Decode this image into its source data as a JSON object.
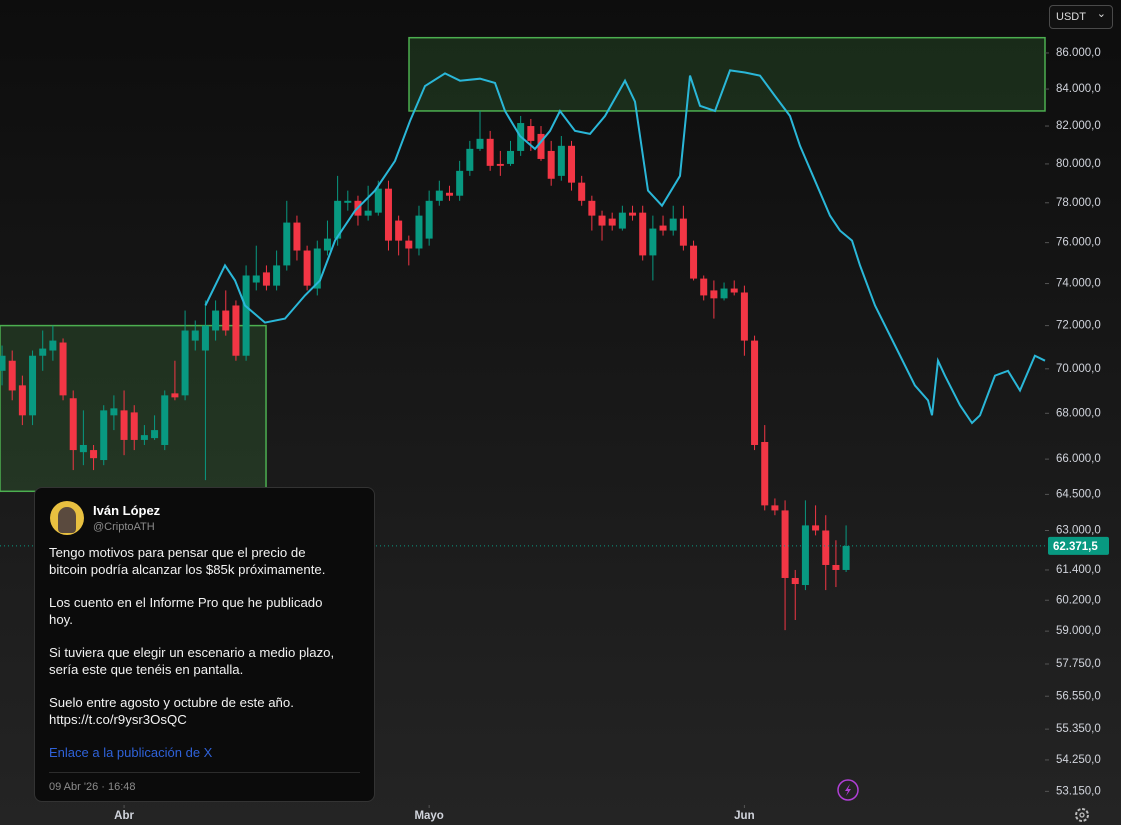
{
  "chart_data": {
    "type": "candlestick",
    "log_scale": true,
    "grid": false,
    "currency": "USDT",
    "ylim": [
      52680,
      89020
    ],
    "yticks": [
      {
        "value": 86000,
        "label": "86.000,0"
      },
      {
        "value": 84000,
        "label": "84.000,0"
      },
      {
        "value": 82000,
        "label": "82.000,0"
      },
      {
        "value": 80000,
        "label": "80.000,0"
      },
      {
        "value": 78000,
        "label": "78.000,0"
      },
      {
        "value": 76000,
        "label": "76.000,0"
      },
      {
        "value": 74000,
        "label": "74.000,0"
      },
      {
        "value": 72000,
        "label": "72.000,0"
      },
      {
        "value": 70000,
        "label": "70.000,0"
      },
      {
        "value": 68000,
        "label": "68.000,0"
      },
      {
        "value": 66000,
        "label": "66.000,0"
      },
      {
        "value": 64500,
        "label": "64.500,0"
      },
      {
        "value": 63000,
        "label": "63.000,0"
      },
      {
        "value": 61400,
        "label": "61.400,0"
      },
      {
        "value": 60200,
        "label": "60.200,0"
      },
      {
        "value": 59000,
        "label": "59.000,0"
      },
      {
        "value": 57750,
        "label": "57.750,0"
      },
      {
        "value": 56550,
        "label": "56.550,0"
      },
      {
        "value": 55350,
        "label": "55.350,0"
      },
      {
        "value": 54250,
        "label": "54.250,0"
      },
      {
        "value": 53150,
        "label": "53.150,0"
      }
    ],
    "xlim": [
      -0.2,
      102.56
    ],
    "xticks": [
      {
        "value": 12,
        "label": "Abr"
      },
      {
        "value": 42,
        "label": "Mayo"
      },
      {
        "value": 73,
        "label": "Jun"
      }
    ],
    "up_color": "#089981",
    "down_color": "#f23645",
    "open": [
      69910,
      70370,
      69250,
      67910,
      70600,
      70840,
      71210,
      68670,
      66300,
      66390,
      65960,
      67910,
      68130,
      68040,
      66830,
      66910,
      66610,
      68890,
      68800,
      71300,
      70840,
      71770,
      72710,
      72950,
      70600,
      74050,
      74540,
      73900,
      74880,
      77000,
      75610,
      73760,
      75610,
      76200,
      78000,
      78100,
      77350,
      77500,
      78720,
      77100,
      76100,
      75710,
      76200,
      78100,
      78510,
      78360,
      79640,
      80790,
      81320,
      80000,
      80000,
      80680,
      82000,
      81580,
      80680,
      79380,
      80950,
      79030,
      78100,
      77350,
      77200,
      76700,
      77500,
      77500,
      75370,
      76850,
      76600,
      77200,
      75850,
      74240,
      73670,
      73290,
      73760,
      73570,
      71300,
      66740,
      64040,
      63830,
      61080,
      60800,
      63210,
      63000,
      61600,
      61400
    ],
    "high": [
      71070,
      70840,
      69690,
      70840,
      71770,
      72000,
      71400,
      69020,
      68130,
      66610,
      68360,
      68800,
      69020,
      68360,
      67480,
      67910,
      69020,
      70370,
      72710,
      72240,
      73190,
      73190,
      73670,
      73190,
      74880,
      75850,
      74880,
      75610,
      78100,
      77350,
      75850,
      76100,
      77100,
      79380,
      78620,
      78360,
      78870,
      79130,
      79130,
      77350,
      76350,
      77850,
      78620,
      79130,
      78870,
      80160,
      81210,
      82810,
      81740,
      80680,
      81210,
      82540,
      82380,
      82000,
      81210,
      81470,
      81210,
      79380,
      78360,
      77600,
      77500,
      77850,
      77850,
      77850,
      77350,
      77350,
      77850,
      77850,
      76100,
      74390,
      74150,
      74050,
      74150,
      73900,
      71530,
      67480,
      64330,
      64250,
      61400,
      64250,
      64040,
      63630,
      62600,
      63210
    ],
    "low": [
      69250,
      68580,
      67480,
      67480,
      69910,
      70370,
      68580,
      65530,
      65740,
      65530,
      65740,
      67260,
      66170,
      66390,
      66610,
      66830,
      66390,
      68580,
      68580,
      70840,
      65100,
      71300,
      71530,
      70370,
      70370,
      73670,
      73670,
      73670,
      74630,
      75120,
      73670,
      73430,
      75370,
      75850,
      77600,
      76850,
      77100,
      77350,
      75610,
      75370,
      74880,
      75370,
      75850,
      77850,
      78100,
      78100,
      79380,
      80680,
      79640,
      79380,
      79900,
      80420,
      80680,
      80160,
      78870,
      79130,
      78620,
      77850,
      76600,
      76100,
      76600,
      76600,
      77100,
      75120,
      74150,
      76350,
      76350,
      75610,
      74150,
      73190,
      72330,
      73190,
      73430,
      70600,
      66390,
      63830,
      63630,
      59040,
      59430,
      60600,
      62800,
      60600,
      60720,
      61320
    ],
    "close": [
      70600,
      69020,
      67910,
      70600,
      70930,
      71300,
      68800,
      66390,
      66610,
      66040,
      68130,
      68220,
      66830,
      66830,
      67040,
      67260,
      68800,
      68710,
      71770,
      71770,
      72000,
      72710,
      71770,
      70600,
      74390,
      74390,
      73900,
      74880,
      77000,
      75610,
      73900,
      75710,
      76200,
      78100,
      78100,
      77350,
      77600,
      78720,
      76100,
      76100,
      75710,
      77350,
      78100,
      78620,
      78360,
      79640,
      80790,
      81320,
      79900,
      79900,
      80680,
      82160,
      81210,
      80260,
      79230,
      80950,
      79030,
      78100,
      77350,
      76850,
      76850,
      77500,
      77350,
      75370,
      76700,
      76600,
      77200,
      75850,
      74240,
      73430,
      73290,
      73760,
      73570,
      71300,
      66610,
      64040,
      63830,
      61080,
      60840,
      63210,
      63000,
      61600,
      61400,
      62370
    ],
    "last_price": {
      "value": 62371.5,
      "label": "62.371,5"
    },
    "line": {
      "color": "#2ab7d8",
      "x": [
        20.0,
        21.93,
        22.91,
        23.89,
        25.86,
        27.83,
        29.79,
        31.27,
        32.74,
        34.71,
        36.68,
        38.64,
        40.12,
        41.59,
        43.56,
        45.03,
        47.0,
        48.48,
        49.46,
        50.93,
        52.41,
        53.88,
        54.87,
        56.34,
        57.82,
        59.29,
        61.26,
        62.24,
        63.52,
        64.9,
        66.67,
        67.65,
        68.63,
        70.11,
        71.58,
        73.06,
        74.53,
        76.01,
        77.48,
        78.47,
        79.94,
        81.42,
        82.4,
        83.58,
        84.37,
        85.84,
        87.81,
        89.77,
        91.05,
        91.45,
        92.04,
        92.72,
        94.2,
        95.38,
        96.17,
        97.64,
        98.92,
        100.1,
        101.57,
        102.56
      ],
      "values": [
        72950,
        74880,
        74150,
        72950,
        72140,
        72330,
        73430,
        74150,
        76100,
        77600,
        78620,
        80160,
        82270,
        84170,
        84860,
        84460,
        84570,
        84340,
        82810,
        81470,
        80790,
        81740,
        82810,
        81740,
        81580,
        82540,
        84460,
        83310,
        78620,
        77850,
        79380,
        84740,
        83090,
        82810,
        85030,
        84910,
        84740,
        83620,
        82540,
        80950,
        79130,
        77350,
        76600,
        76100,
        74880,
        72950,
        71070,
        69250,
        68580,
        67910,
        70370,
        69690,
        68360,
        67570,
        67910,
        69690,
        69910,
        69020,
        70600,
        70370
      ]
    },
    "zones": [
      {
        "color": "#4caf50",
        "xlim": [
          40.02,
          102.56
        ],
        "ylim": [
          82810,
          86860
        ]
      },
      {
        "color": "#4caf50",
        "xlim": [
          -0.2,
          25.96
        ],
        "ylim": [
          64630,
          72000
        ]
      }
    ]
  },
  "post": {
    "author": "Iván López",
    "handle": "@CriptoATH",
    "paragraphs": [
      [
        "Tengo motivos para pensar que el precio de",
        "bitcoin podría alcanzar los $85k próximamente."
      ],
      [
        "Los cuento en el Informe Pro que he publicado",
        "hoy."
      ],
      [
        "Si tuviera que elegir un escenario a medio plazo,",
        "sería este que tenéis en pantalla."
      ],
      [
        "Suelo entre agosto y octubre de este año.",
        "https://t.co/r9ysr3OsQC"
      ]
    ],
    "link": "Enlace a la publicación de X",
    "date": "09 Abr '26 · 16:48"
  }
}
